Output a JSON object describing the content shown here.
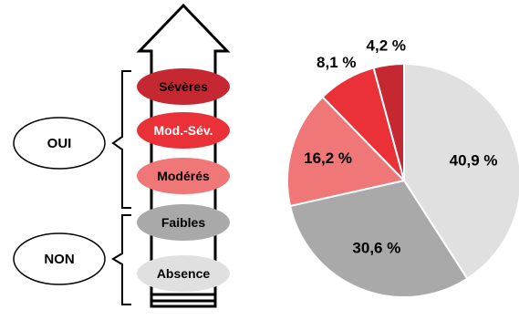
{
  "groups": {
    "yes": "OUI",
    "no": "NON"
  },
  "scale": [
    {
      "label": "Sévères",
      "color": "#c62832",
      "text_color": "#000000"
    },
    {
      "label": "Mod.-Sév.",
      "color": "#ea3138",
      "text_color": "#ffffff"
    },
    {
      "label": "Modérés",
      "color": "#f07777",
      "text_color": "#000000"
    },
    {
      "label": "Faibles",
      "color": "#a9a9a9",
      "text_color": "#000000"
    },
    {
      "label": "Absence",
      "color": "#e0e0e0",
      "text_color": "#000000"
    }
  ],
  "chart_data": {
    "type": "pie",
    "title": "",
    "categories": [
      "Absence",
      "Faibles",
      "Modérés",
      "Mod.-Sév.",
      "Sévères"
    ],
    "values": [
      40.9,
      30.6,
      16.2,
      8.1,
      4.2
    ],
    "labels": [
      "40,9 %",
      "30,6 %",
      "16,2 %",
      "8,1 %",
      "4,2 %"
    ],
    "colors": [
      "#e0e0e0",
      "#a9a9a9",
      "#f07777",
      "#ea3138",
      "#c62832"
    ],
    "legend": "none"
  }
}
